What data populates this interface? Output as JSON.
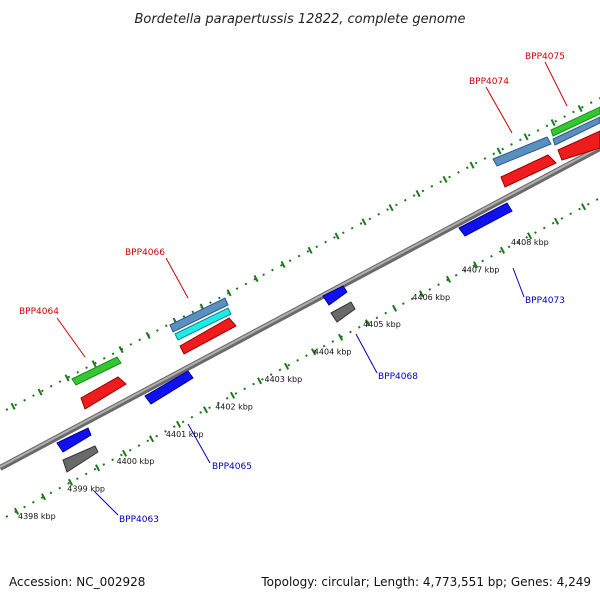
{
  "title": "Bordetella parapertussis 12822, complete genome",
  "footer": {
    "accession": "Accession: NC_002928",
    "summary": "Topology: circular; Length: 4,773,551 bp; Genes: 4,249"
  },
  "colors": {
    "forward_label": "#cc0000",
    "reverse_label": "#0000bb",
    "tick": "#1a7a1a",
    "backbone": "#8c8c8c"
  },
  "ticks": [
    "4398 kbp",
    "4399 kbp",
    "4400 kbp",
    "4401 kbp",
    "4402 kbp",
    "4403 kbp",
    "4404 kbp",
    "4405 kbp",
    "4406 kbp",
    "4407 kbp",
    "4408 kbp"
  ],
  "gene_labels": {
    "bpp4064": "BPP4064",
    "bpp4066": "BPP4066",
    "bpp4074": "BPP4074",
    "bpp4075": "BPP4075",
    "bpp4063": "BPP4063",
    "bpp4065": "BPP4065",
    "bpp4068": "BPP4068",
    "bpp4073": "BPP4073"
  }
}
